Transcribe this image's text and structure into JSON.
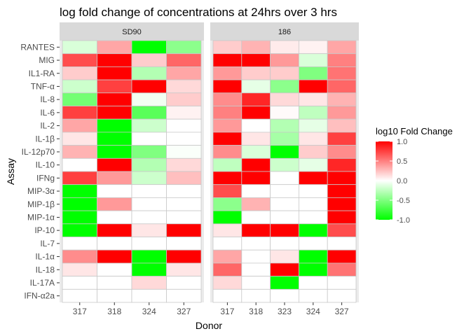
{
  "chart_data": {
    "type": "heatmap",
    "title": "log fold change of concentrations at 24hrs over 3 hrs",
    "xlabel": "Donor",
    "ylabel": "Assay",
    "rows": [
      "RANTES",
      "MIG",
      "IL1-RA",
      "TNF-α",
      "IL-8",
      "IL-6",
      "IL-2",
      "IL-1β",
      "IL-12p70",
      "IL-10",
      "IFNg",
      "MIP-3α",
      "MIP-1β",
      "MIP-1α",
      "IP-10",
      "IL-7",
      "IL-1α",
      "IL-18",
      "IL-17A",
      "IFN-α2a"
    ],
    "legend": {
      "title": "log10 Fold Change",
      "ticks": [
        1.0,
        0.5,
        0.0,
        -0.5,
        -1.0
      ],
      "tick_labels": [
        "1.0",
        "0.5",
        "0.0",
        "-0.5",
        "-1.0"
      ],
      "limits": [
        -1.0,
        1.0
      ],
      "high_color": "#ff0000",
      "mid_color": "#ffffff",
      "low_color": "#00ff00",
      "position": "right"
    },
    "panels": [
      {
        "label": "SD90",
        "donors": [
          "317",
          "318",
          "324",
          "327"
        ],
        "values": [
          [
            -0.15,
            0.35,
            -1.0,
            -0.45
          ],
          [
            0.7,
            1.0,
            0.2,
            0.6
          ],
          [
            0.2,
            1.0,
            -0.3,
            0.35
          ],
          [
            -0.2,
            0.75,
            1.0,
            0.15
          ],
          [
            -0.55,
            1.0,
            -0.05,
            0.2
          ],
          [
            0.75,
            1.0,
            -0.65,
            0.05
          ],
          [
            0.35,
            -1.0,
            -0.2,
            0.0
          ],
          [
            0.1,
            -1.0,
            0.0,
            0.0
          ],
          [
            0.3,
            -1.0,
            -0.5,
            -0.02
          ],
          [
            0.0,
            1.0,
            -0.3,
            0.15
          ],
          [
            0.75,
            0.4,
            -0.2,
            0.25
          ],
          [
            -1.0,
            0.0,
            0.0,
            0.0
          ],
          [
            -1.0,
            0.4,
            0.0,
            0.0
          ],
          [
            -1.0,
            0.0,
            0.0,
            0.0
          ],
          [
            -1.0,
            1.0,
            0.1,
            1.0
          ],
          [
            0.0,
            0.0,
            0.0,
            0.0
          ],
          [
            0.45,
            1.0,
            -1.0,
            1.0
          ],
          [
            0.1,
            0.0,
            -1.0,
            0.1
          ],
          [
            0.0,
            0.0,
            0.15,
            0.0
          ],
          [
            0.0,
            0.0,
            0.0,
            0.0
          ]
        ]
      },
      {
        "label": "186",
        "donors": [
          "317",
          "318",
          "323",
          "324",
          "327"
        ],
        "values": [
          [
            0.2,
            0.3,
            0.08,
            0.05,
            0.35
          ],
          [
            1.0,
            1.0,
            0.4,
            -0.15,
            0.5
          ],
          [
            0.4,
            0.2,
            0.2,
            -0.5,
            0.55
          ],
          [
            1.0,
            -0.1,
            -0.45,
            1.0,
            0.6
          ],
          [
            0.45,
            0.85,
            0.15,
            0.1,
            0.3
          ],
          [
            0.5,
            1.0,
            0.02,
            -0.25,
            0.4
          ],
          [
            0.4,
            0.0,
            -0.3,
            -0.1,
            0.25
          ],
          [
            1.0,
            0.1,
            -0.35,
            0.1,
            0.75
          ],
          [
            0.45,
            -0.15,
            -1.0,
            0.2,
            0.45
          ],
          [
            -0.25,
            1.0,
            -0.2,
            -0.1,
            0.85
          ],
          [
            1.0,
            1.0,
            0.0,
            1.0,
            1.0
          ],
          [
            0.7,
            0.0,
            0.0,
            0.0,
            1.0
          ],
          [
            -0.45,
            0.3,
            0.0,
            0.0,
            1.0
          ],
          [
            -1.0,
            0.0,
            0.0,
            0.0,
            1.0
          ],
          [
            0.1,
            1.0,
            1.0,
            -1.0,
            0.7
          ],
          [
            0.0,
            0.0,
            0.0,
            0.0,
            0.0
          ],
          [
            0.35,
            0.0,
            0.1,
            -1.0,
            1.0
          ],
          [
            0.6,
            0.0,
            1.0,
            -1.0,
            0.55
          ],
          [
            0.15,
            0.0,
            -1.0,
            0.0,
            0.0
          ],
          [
            0.0,
            0.0,
            0.0,
            0.0,
            0.0
          ]
        ]
      }
    ]
  }
}
